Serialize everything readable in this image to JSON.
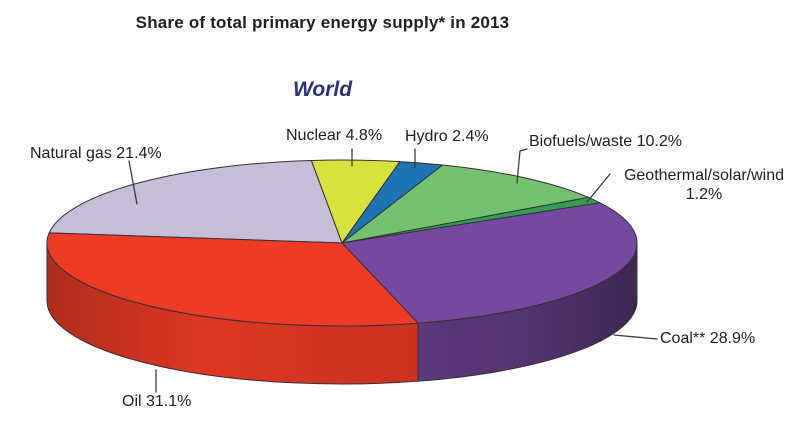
{
  "title": "Share of total primary energy supply* in 2013",
  "subtitle": "World",
  "chart_data": {
    "type": "pie",
    "style": "3d",
    "title": "Share of total primary energy supply* in 2013",
    "region_label": "World",
    "year": "2013",
    "unit": "percent",
    "start_angle_deg": 187,
    "direction": "clockwise",
    "slices": [
      {
        "label": "Natural gas",
        "value": 21.4,
        "display": "Natural gas 21.4%",
        "color": "#c5bed6"
      },
      {
        "label": "Nuclear",
        "value": 4.8,
        "display": "Nuclear 4.8%",
        "color": "#d8e23c"
      },
      {
        "label": "Hydro",
        "value": 2.4,
        "display": "Hydro 2.4%",
        "color": "#1c74b5"
      },
      {
        "label": "Biofuels/waste",
        "value": 10.2,
        "display": "Biofuels/waste 10.2%",
        "color": "#74c16f"
      },
      {
        "label": "Geothermal/solar/wind",
        "value": 1.2,
        "display": "Geothermal/solar/wind 1.2%",
        "color": "#2f9e54"
      },
      {
        "label": "Coal**",
        "value": 28.9,
        "display": "Coal** 28.9%",
        "color": "#7549a0"
      },
      {
        "label": "Oil",
        "value": 31.1,
        "display": "Oil 31.1%",
        "color": "#ee3b26"
      }
    ],
    "outline_color": "#3a2f35",
    "text_color": "#232020",
    "title_color": "#231f20",
    "subtitle_color": "#2c2e88"
  },
  "callouts": {
    "natural_gas": "Natural gas 21.4%",
    "nuclear": "Nuclear 4.8%",
    "hydro": "Hydro 2.4%",
    "biofuels": "Biofuels/waste 10.2%",
    "geothermal_line1": "Geothermal/solar/wind",
    "geothermal_line2": "1.2%",
    "coal": "Coal** 28.9%",
    "oil": "Oil 31.1%"
  }
}
